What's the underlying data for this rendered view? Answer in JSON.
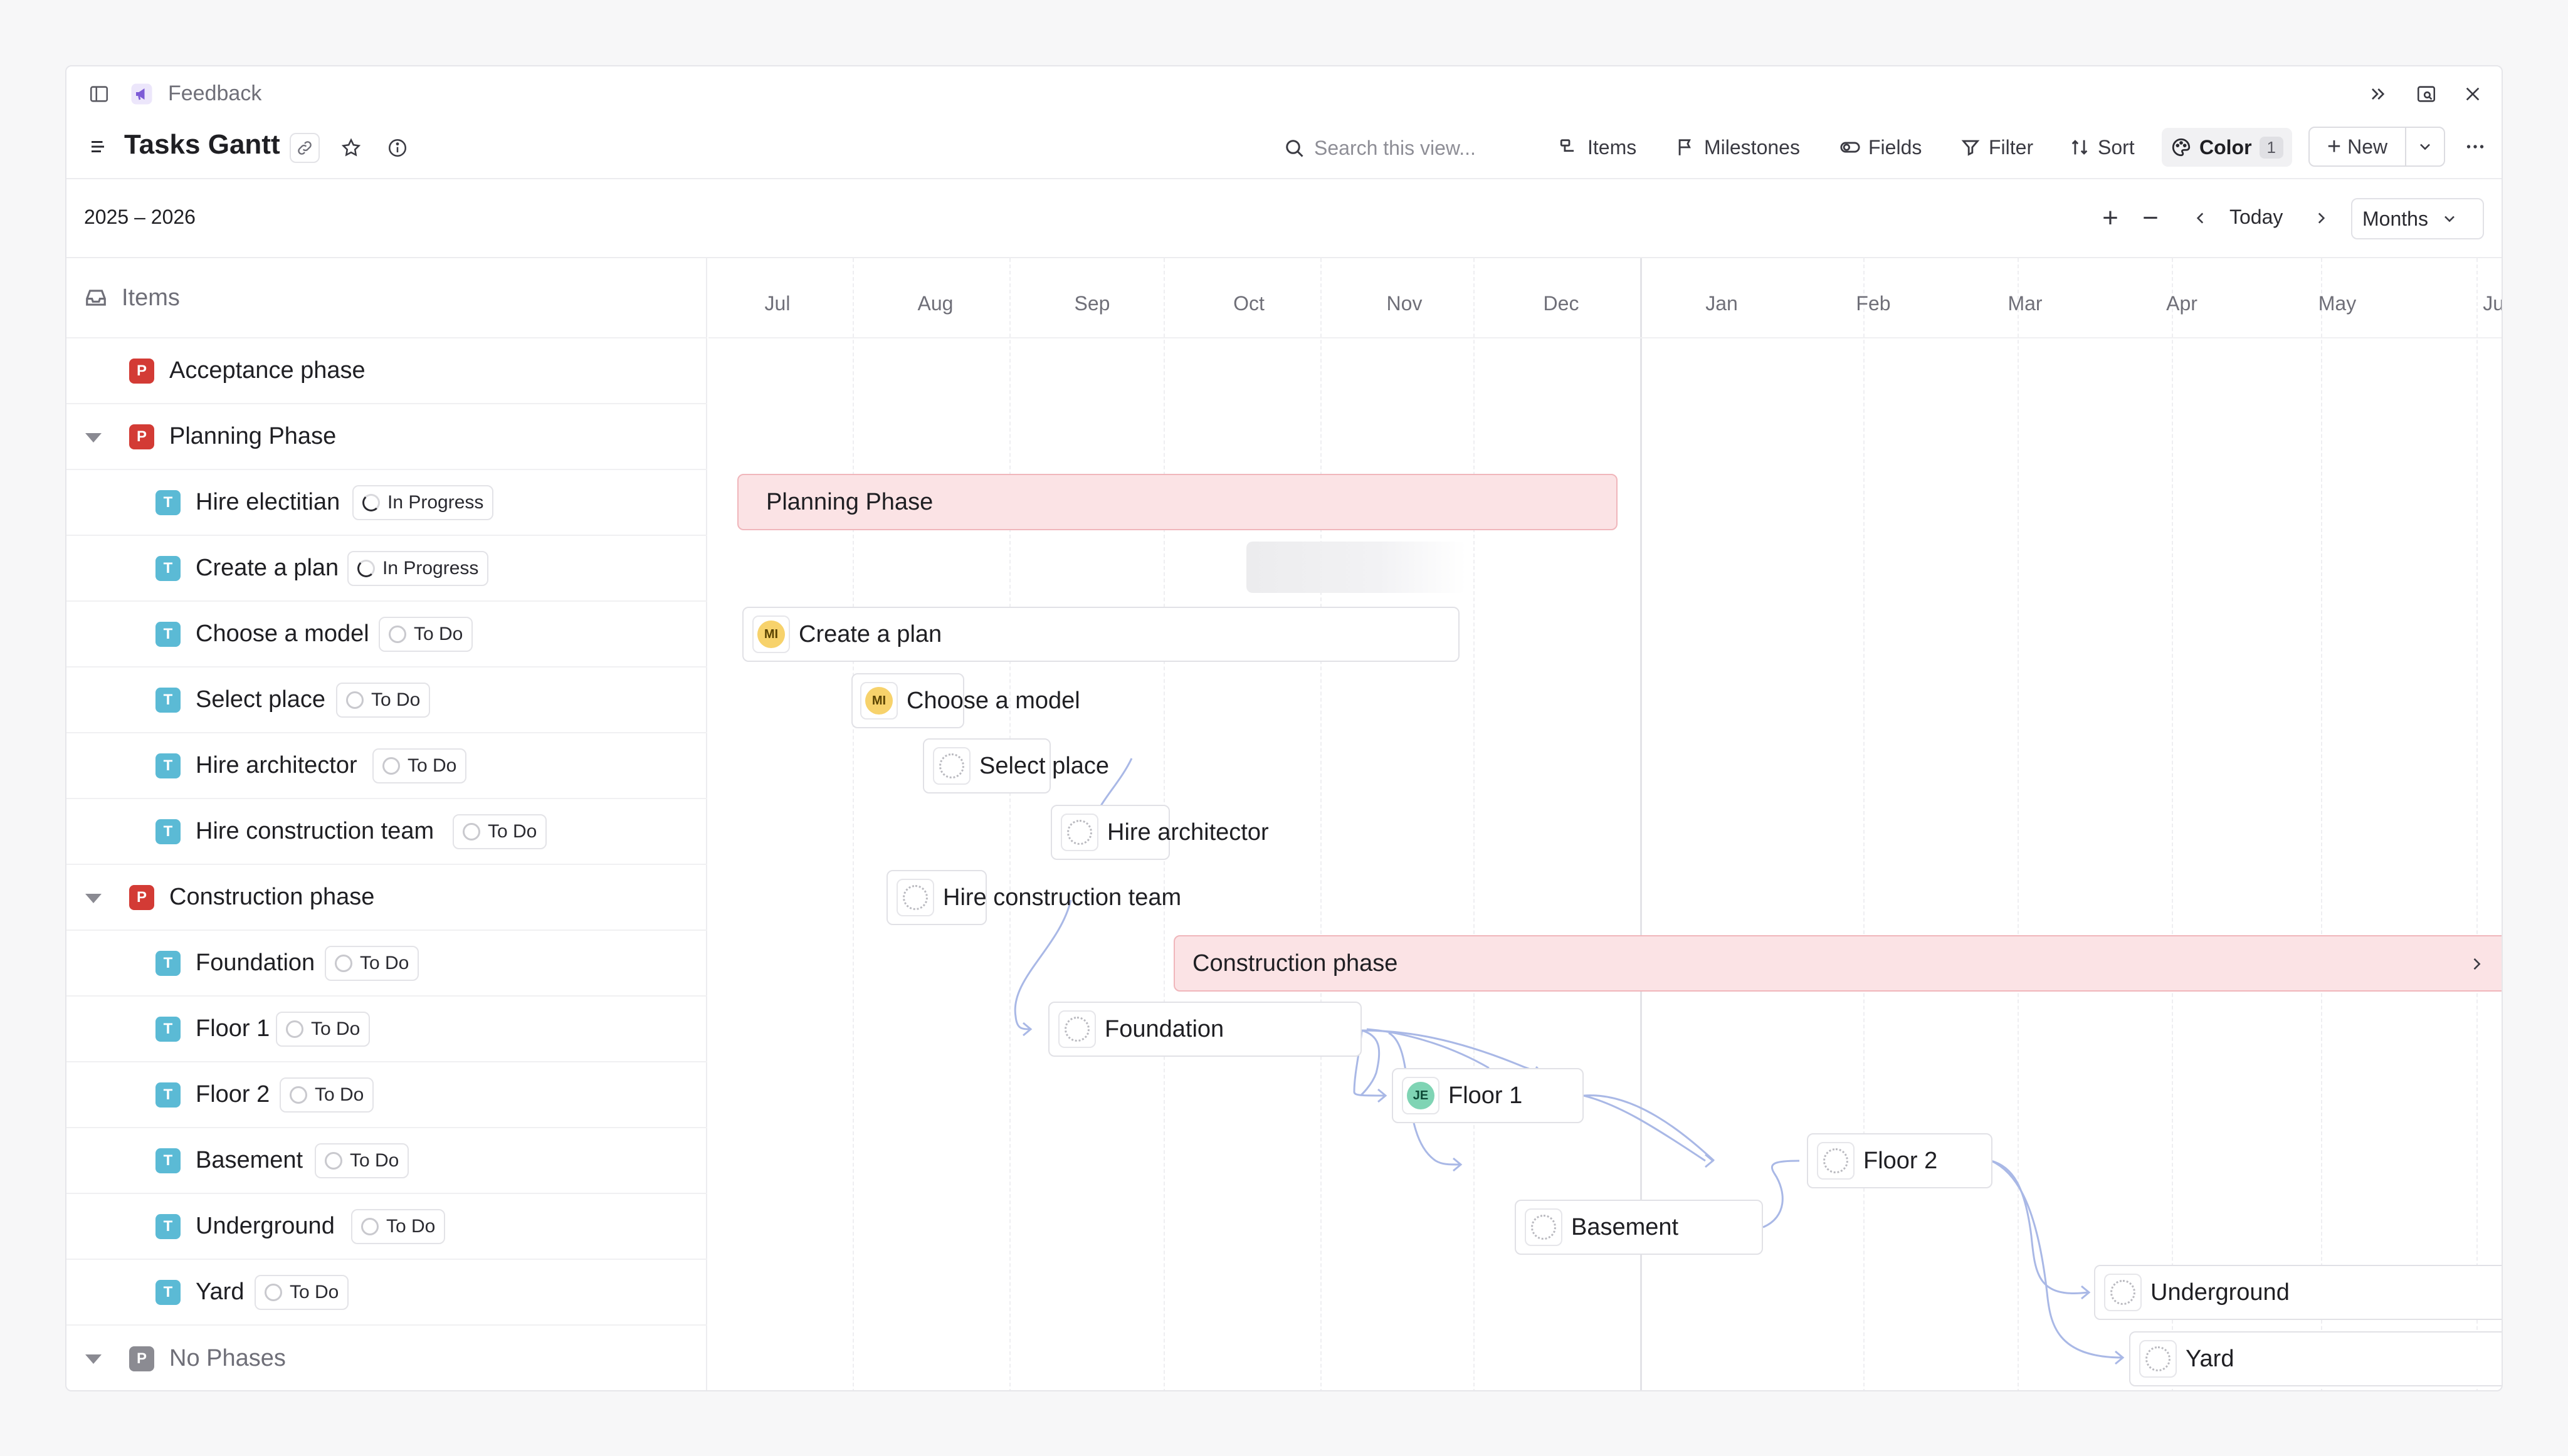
{
  "breadcrumb": {
    "label": "Feedback"
  },
  "header": {
    "title": "Tasks Gantt"
  },
  "search": {
    "placeholder": "Search this view..."
  },
  "toolbar": {
    "items": "Items",
    "milestones": "Milestones",
    "fields": "Fields",
    "filter": "Filter",
    "sort": "Sort",
    "color": "Color",
    "color_count": "1",
    "new": "New"
  },
  "timeline": {
    "range": "2025 – 2026",
    "today": "Today",
    "scale": "Months",
    "months": [
      "Jul",
      "Aug",
      "Sep",
      "Oct",
      "Nov",
      "Dec",
      "Jan",
      "Feb",
      "Mar",
      "Apr",
      "May",
      "Jun"
    ]
  },
  "list": {
    "header": "Items",
    "rows": [
      {
        "type": "P",
        "label": "Acceptance phase"
      },
      {
        "type": "P",
        "label": "Planning Phase"
      },
      {
        "type": "T",
        "label": "Hire electitian",
        "status": "In Progress"
      },
      {
        "type": "T",
        "label": "Create a plan",
        "status": "In Progress"
      },
      {
        "type": "T",
        "label": "Choose a model",
        "status": "To Do"
      },
      {
        "type": "T",
        "label": "Select place",
        "status": "To Do"
      },
      {
        "type": "T",
        "label": "Hire architector",
        "status": "To Do"
      },
      {
        "type": "T",
        "label": "Hire construction team",
        "status": "To Do"
      },
      {
        "type": "P",
        "label": "Construction phase"
      },
      {
        "type": "T",
        "label": "Foundation",
        "status": "To Do"
      },
      {
        "type": "T",
        "label": "Floor 1",
        "status": "To Do"
      },
      {
        "type": "T",
        "label": "Floor 2",
        "status": "To Do"
      },
      {
        "type": "T",
        "label": "Basement",
        "status": "To Do"
      },
      {
        "type": "T",
        "label": "Underground",
        "status": "To Do"
      },
      {
        "type": "T",
        "label": "Yard",
        "status": "To Do"
      },
      {
        "type": "P",
        "label": "No Phases"
      }
    ]
  },
  "gantt": {
    "planning_phase": "Planning Phase",
    "construction_phase": "Construction phase",
    "tasks": {
      "create_plan": {
        "label": "Create a plan",
        "avatar": "MI"
      },
      "choose_model": {
        "label": "Choose a model",
        "avatar": "MI"
      },
      "select_place": {
        "label": "Select place"
      },
      "hire_architector": {
        "label": "Hire architector"
      },
      "hire_team": {
        "label": "Hire construction team"
      },
      "foundation": {
        "label": "Foundation"
      },
      "floor1": {
        "label": "Floor 1",
        "avatar": "JE"
      },
      "floor2": {
        "label": "Floor 2"
      },
      "basement": {
        "label": "Basement"
      },
      "underground": {
        "label": "Underground"
      },
      "yard": {
        "label": "Yard"
      }
    }
  },
  "colors": {
    "phase_badge": "#d33b35",
    "task_badge": "#5bbad5",
    "phase_bar_fill": "#fbe3e5",
    "dependency_line": "#a9b8e6"
  }
}
